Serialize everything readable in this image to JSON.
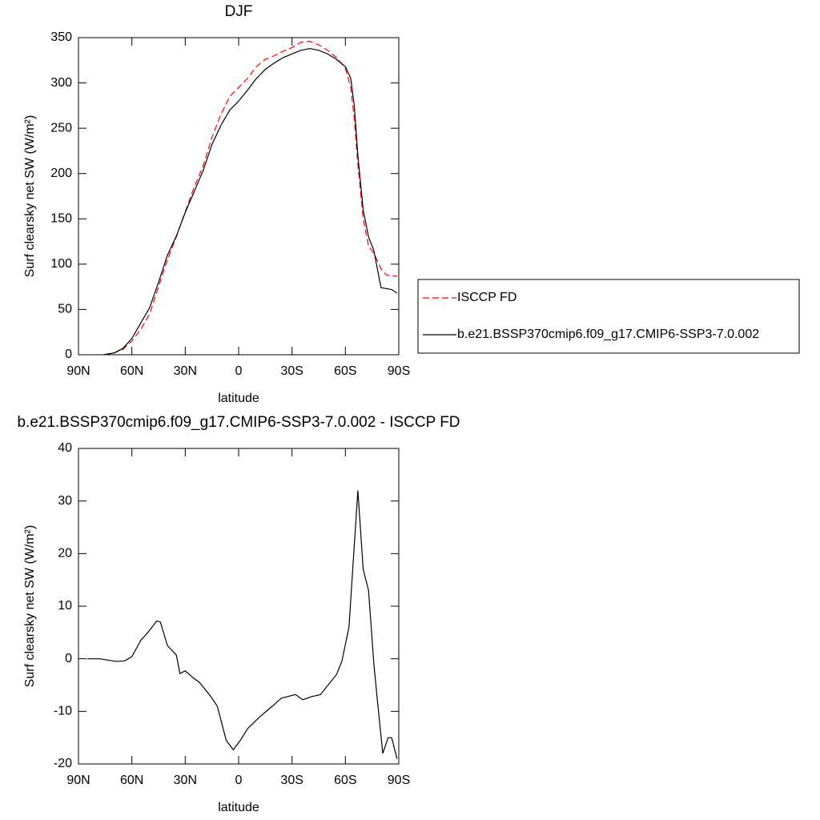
{
  "chart_data": [
    {
      "type": "line",
      "title": "DJF",
      "xlabel": "latitude",
      "ylabel": "Surf clearsky net SW (W/m²)",
      "x": [
        76,
        70,
        65,
        60,
        55,
        50,
        45,
        40,
        35,
        30,
        25,
        20,
        15,
        10,
        5,
        0,
        -5,
        -10,
        -15,
        -20,
        -25,
        -30,
        -35,
        -40,
        -45,
        -50,
        -55,
        -60,
        -63,
        -65,
        -67,
        -70,
        -73,
        -76,
        -80,
        -83,
        -86,
        -89
      ],
      "xlim": [
        90,
        -90
      ],
      "xticks": [
        {
          "value": 90,
          "label": "90N"
        },
        {
          "value": 60,
          "label": "60N"
        },
        {
          "value": 30,
          "label": "30N"
        },
        0,
        {
          "value": -30,
          "label": "30S"
        },
        {
          "value": -60,
          "label": "60S"
        },
        {
          "value": -90,
          "label": "90S"
        }
      ],
      "ylim": [
        0,
        350
      ],
      "yticks": [
        0,
        50,
        100,
        150,
        200,
        250,
        300,
        350
      ],
      "legend": "right",
      "series": [
        {
          "name": "ISCCP FD",
          "color": "#ff0000",
          "dashed": true,
          "values": [
            0,
            2,
            6,
            15,
            28,
            45,
            75,
            105,
            130,
            158,
            185,
            208,
            240,
            265,
            285,
            295,
            305,
            318,
            326,
            330,
            335,
            339,
            345,
            346,
            342,
            336,
            328,
            316,
            295,
            260,
            210,
            150,
            120,
            112,
            95,
            88,
            87,
            87
          ]
        },
        {
          "name": "b.e21.BSSP370cmip6.f09_g17.CMIP6-SSP3-7.0.002",
          "color": "#000000",
          "dashed": false,
          "values": [
            0,
            2,
            7,
            18,
            35,
            52,
            80,
            110,
            131,
            157,
            180,
            203,
            232,
            253,
            270,
            280,
            292,
            305,
            315,
            322,
            328,
            332,
            336,
            338,
            336,
            332,
            326,
            318,
            305,
            275,
            220,
            160,
            130,
            115,
            74,
            73,
            72,
            68
          ]
        }
      ]
    },
    {
      "type": "line",
      "title": "b.e21.BSSP370cmip6.f09_g17.CMIP6-SSP3-7.0.002 - ISCCP FD",
      "xlabel": "latitude",
      "ylabel": "Surf clearsky net SW (W/m²)",
      "x": [
        85,
        78,
        69,
        64,
        60,
        55,
        51,
        46,
        44,
        40,
        35,
        33,
        30,
        26,
        22,
        16,
        12,
        7,
        3,
        -1,
        -5,
        -12,
        -19,
        -24,
        -32,
        -36,
        -41,
        -46,
        -55,
        -58,
        -62,
        -67,
        -70,
        -73,
        -76,
        -78,
        -81,
        -84,
        -86,
        -89
      ],
      "xlim": [
        90,
        -90
      ],
      "xticks": [
        {
          "value": 90,
          "label": "90N"
        },
        {
          "value": 60,
          "label": "60N"
        },
        {
          "value": 30,
          "label": "30N"
        },
        0,
        {
          "value": -30,
          "label": "30S"
        },
        {
          "value": -60,
          "label": "60S"
        },
        {
          "value": -90,
          "label": "90S"
        }
      ],
      "ylim": [
        -20,
        40
      ],
      "yticks": [
        -20,
        -10,
        0,
        10,
        20,
        30,
        40
      ],
      "series": [
        {
          "color": "#000000",
          "dashed": false,
          "values": [
            0,
            0,
            -0.5,
            -0.4,
            0.4,
            3.5,
            5,
            7.2,
            7,
            2.5,
            0.7,
            -2.8,
            -2.3,
            -3.5,
            -4.5,
            -7,
            -9,
            -15.5,
            -17.3,
            -15.5,
            -13.3,
            -11,
            -9,
            -7.5,
            -6.8,
            -7.8,
            -7.2,
            -6.8,
            -3,
            -0.5,
            6,
            32,
            17,
            13,
            -1,
            -8,
            -18,
            -15,
            -15,
            -19
          ]
        }
      ]
    }
  ]
}
